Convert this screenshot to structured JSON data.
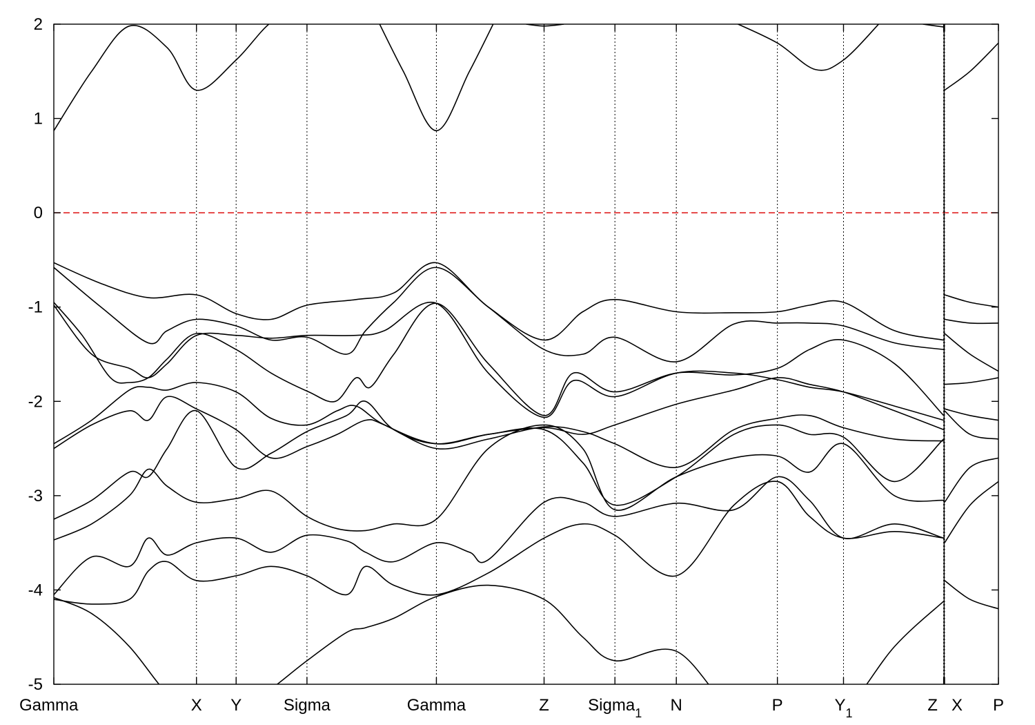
{
  "chart_data": {
    "type": "line",
    "title": "",
    "xlabel": "",
    "ylabel": "",
    "ylim": [
      -5,
      2
    ],
    "yticks": [
      2,
      1,
      0,
      -1,
      -2,
      -3,
      -4,
      -5
    ],
    "fermi_level": 0,
    "fermi_color": "#e02020",
    "line_color": "#000000",
    "grid": false,
    "xlim": [
      0,
      10
    ],
    "high_symmetry_points": [
      {
        "label": "Gamma",
        "sub": "",
        "x": 0.0
      },
      {
        "label": "X",
        "sub": "",
        "x": 1.51
      },
      {
        "label": "Y",
        "sub": "",
        "x": 1.93
      },
      {
        "label": "Sigma",
        "sub": "",
        "x": 2.68
      },
      {
        "label": "Gamma",
        "sub": "",
        "x": 4.05
      },
      {
        "label": "Z",
        "sub": "",
        "x": 5.19
      },
      {
        "label": "Sigma",
        "sub": "1",
        "x": 5.94
      },
      {
        "label": "N",
        "sub": "",
        "x": 6.59
      },
      {
        "label": "P",
        "sub": "",
        "x": 7.66
      },
      {
        "label": "Y",
        "sub": "1",
        "x": 8.36
      },
      {
        "label": "Z",
        "sub": "",
        "x": 9.42
      },
      {
        "label": "X",
        "sub": "",
        "x": 9.43
      },
      {
        "label": "P",
        "sub": "",
        "x": 10.0
      }
    ],
    "series": [
      {
        "x": [
          0,
          0.4,
          0.8,
          1.2,
          1.51,
          1.93,
          2.3,
          2.68
        ],
        "y": [
          0.87,
          1.5,
          1.98,
          1.75,
          1.3,
          1.62,
          2.02,
          2.2
        ]
      },
      {
        "x": [
          3.4,
          3.7,
          4.05,
          4.4,
          4.7
        ],
        "y": [
          2.1,
          1.5,
          0.87,
          1.5,
          2.1
        ]
      },
      {
        "x": [
          7.2,
          7.66,
          8.06,
          8.36,
          8.75
        ],
        "y": [
          2.02,
          1.8,
          1.52,
          1.62,
          2.02
        ]
      },
      {
        "x": [
          5.0,
          5.19,
          5.4
        ],
        "y": [
          2.0,
          1.98,
          2.0
        ]
      },
      {
        "x": [
          9.2,
          9.42
        ],
        "y": [
          2.0,
          1.97
        ]
      },
      {
        "x": [
          9.43,
          9.7,
          10.0
        ],
        "y": [
          1.3,
          1.5,
          1.8
        ]
      },
      {
        "x": [
          0,
          0.5,
          1.0,
          1.51,
          1.93,
          2.3,
          2.68,
          3.2,
          3.6,
          4.05,
          4.6,
          5.19,
          5.6,
          5.94,
          6.59,
          7.2,
          7.66,
          8.0,
          8.36,
          8.9,
          9.42
        ],
        "y": [
          -0.53,
          -0.75,
          -0.9,
          -0.87,
          -1.07,
          -1.13,
          -0.98,
          -0.92,
          -0.85,
          -0.53,
          -1.0,
          -1.35,
          -1.05,
          -0.92,
          -1.05,
          -1.06,
          -1.05,
          -0.98,
          -0.95,
          -1.25,
          -1.35
        ]
      },
      {
        "x": [
          0,
          0.5,
          1.0,
          1.2,
          1.51,
          1.93,
          2.3,
          2.68,
          3.1,
          3.3,
          3.6,
          4.05,
          4.6,
          5.19,
          5.6,
          5.94,
          6.59,
          7.2,
          7.66,
          8.0,
          8.36,
          8.9,
          9.42
        ],
        "y": [
          -0.58,
          -1.0,
          -1.38,
          -1.25,
          -1.13,
          -1.2,
          -1.35,
          -1.32,
          -1.5,
          -1.25,
          -0.95,
          -0.58,
          -1.0,
          -1.45,
          -1.5,
          -1.32,
          -1.58,
          -1.18,
          -1.17,
          -1.17,
          -1.2,
          -1.38,
          -1.45
        ]
      },
      {
        "x": [
          0,
          0.3,
          0.6,
          0.8,
          1.0,
          1.2,
          1.51,
          1.93,
          2.3,
          2.7,
          2.98,
          3.2,
          3.35,
          3.6,
          4.05,
          4.6,
          5.19,
          5.5,
          5.94,
          6.59,
          7.2,
          7.66,
          8.0,
          8.36,
          8.9,
          9.42
        ],
        "y": [
          -0.95,
          -1.3,
          -1.75,
          -1.8,
          -1.75,
          -1.55,
          -1.28,
          -1.45,
          -1.7,
          -1.9,
          -2.0,
          -1.75,
          -1.85,
          -1.5,
          -0.96,
          -1.6,
          -2.15,
          -1.7,
          -1.9,
          -1.7,
          -1.72,
          -1.65,
          -1.45,
          -1.35,
          -1.6,
          -2.15
        ]
      },
      {
        "x": [
          0,
          0.4,
          0.8,
          1.0,
          1.2,
          1.51,
          1.93,
          2.3,
          2.68,
          3.2,
          3.5,
          4.05,
          4.6,
          5.19,
          5.5,
          5.94,
          6.59,
          7.2,
          7.66,
          8.0,
          8.36,
          8.9,
          9.42
        ],
        "y": [
          -0.98,
          -1.5,
          -1.65,
          -1.75,
          -1.6,
          -1.3,
          -1.3,
          -1.33,
          -1.3,
          -1.3,
          -1.25,
          -0.96,
          -1.7,
          -2.17,
          -1.78,
          -1.95,
          -1.7,
          -1.7,
          -1.77,
          -1.85,
          -1.9,
          -2.05,
          -2.2
        ]
      },
      {
        "x": [
          0,
          0.4,
          0.8,
          1.0,
          1.2,
          1.51,
          1.93,
          2.3,
          2.68,
          3.0,
          3.2,
          3.5,
          4.05,
          4.6,
          5.19,
          5.6,
          5.94,
          6.59,
          7.2,
          7.66,
          8.0,
          8.36,
          8.9,
          9.42
        ],
        "y": [
          -2.45,
          -2.2,
          -1.88,
          -1.85,
          -1.88,
          -1.8,
          -1.9,
          -2.18,
          -2.25,
          -2.1,
          -2.05,
          -2.25,
          -2.45,
          -2.35,
          -2.28,
          -2.35,
          -2.25,
          -2.03,
          -1.88,
          -1.75,
          -1.82,
          -1.9,
          -2.1,
          -2.3
        ]
      },
      {
        "x": [
          0,
          0.4,
          0.8,
          1.0,
          1.2,
          1.51,
          1.93,
          2.3,
          2.68,
          3.0,
          3.3,
          3.5,
          4.05,
          4.6,
          5.19,
          5.6,
          5.94,
          6.59,
          7.2,
          7.66,
          8.0,
          8.36,
          8.9,
          9.42
        ],
        "y": [
          -2.5,
          -2.25,
          -2.1,
          -2.2,
          -1.95,
          -2.08,
          -2.3,
          -2.6,
          -2.48,
          -2.35,
          -2.2,
          -2.25,
          -2.5,
          -2.4,
          -2.27,
          -2.32,
          -2.45,
          -2.7,
          -2.3,
          -2.18,
          -2.15,
          -2.28,
          -2.4,
          -2.42
        ]
      },
      {
        "x": [
          0,
          0.4,
          0.8,
          1.0,
          1.2,
          1.51,
          1.93,
          2.3,
          2.68,
          3.1,
          3.3,
          3.6,
          4.05,
          4.6,
          5.19,
          5.6,
          5.94,
          6.59,
          7.2,
          7.66,
          8.0,
          8.36,
          8.9,
          9.42
        ],
        "y": [
          -3.25,
          -3.05,
          -2.75,
          -2.8,
          -2.5,
          -2.1,
          -2.7,
          -2.55,
          -2.32,
          -2.15,
          -2.0,
          -2.3,
          -2.45,
          -2.35,
          -2.3,
          -2.65,
          -3.1,
          -2.8,
          -2.35,
          -2.25,
          -2.35,
          -2.38,
          -2.85,
          -2.4
        ]
      },
      {
        "x": [
          0,
          0.4,
          0.8,
          1.0,
          1.2,
          1.51,
          1.93,
          2.3,
          2.68,
          3.0,
          3.3,
          3.6,
          4.05,
          4.6,
          5.19,
          5.6,
          5.94,
          6.59,
          7.2,
          7.66,
          8.0,
          8.36,
          8.9,
          9.42
        ],
        "y": [
          -3.47,
          -3.3,
          -3.0,
          -2.72,
          -2.9,
          -3.07,
          -3.03,
          -2.95,
          -3.22,
          -3.35,
          -3.37,
          -3.3,
          -3.25,
          -2.5,
          -2.25,
          -2.5,
          -3.15,
          -2.8,
          -2.6,
          -2.58,
          -2.75,
          -2.45,
          -3.0,
          -3.05
        ]
      },
      {
        "x": [
          0,
          0.4,
          0.8,
          1.0,
          1.2,
          1.51,
          1.93,
          2.3,
          2.68,
          3.1,
          3.3,
          3.6,
          4.05,
          4.4,
          4.6,
          5.19,
          5.6,
          5.94,
          6.59,
          7.2,
          7.66,
          8.0,
          8.36,
          8.9,
          9.42
        ],
        "y": [
          -4.05,
          -3.65,
          -3.75,
          -3.45,
          -3.63,
          -3.5,
          -3.45,
          -3.6,
          -3.42,
          -3.48,
          -3.6,
          -3.7,
          -3.5,
          -3.6,
          -3.68,
          -3.07,
          -3.07,
          -3.22,
          -3.08,
          -3.15,
          -2.8,
          -3.05,
          -3.45,
          -3.3,
          -3.45
        ]
      },
      {
        "x": [
          0,
          0.4,
          0.8,
          1.0,
          1.2,
          1.51,
          1.93,
          2.3,
          2.68,
          3.1,
          3.3,
          3.6,
          4.05,
          4.6,
          5.19,
          5.6,
          5.94,
          6.59,
          7.2,
          7.66,
          8.0,
          8.36,
          8.9,
          9.42
        ],
        "y": [
          -4.1,
          -4.15,
          -4.1,
          -3.8,
          -3.7,
          -3.9,
          -3.85,
          -3.75,
          -3.85,
          -4.05,
          -3.75,
          -3.95,
          -4.05,
          -3.82,
          -3.45,
          -3.3,
          -3.42,
          -3.85,
          -3.1,
          -2.85,
          -3.22,
          -3.45,
          -3.38,
          -3.45
        ]
      },
      {
        "x": [
          0,
          0.4,
          0.8,
          1.2,
          1.51,
          1.93,
          2.3,
          2.68,
          3.1,
          3.3,
          3.6,
          4.05,
          4.6,
          5.19,
          5.6,
          5.94,
          6.59,
          7.2,
          7.66,
          8.0,
          8.36,
          8.9,
          9.42
        ],
        "y": [
          -4.08,
          -4.25,
          -4.6,
          -5.1,
          -5.3,
          -5.3,
          -5.05,
          -4.75,
          -4.45,
          -4.4,
          -4.3,
          -4.07,
          -3.95,
          -4.1,
          -4.5,
          -4.75,
          -4.65,
          -5.3,
          -5.3,
          -5.3,
          -5.3,
          -4.6,
          -4.12
        ]
      },
      {
        "x": [
          9.43,
          9.7,
          10.0
        ],
        "y": [
          -0.87,
          -0.95,
          -1.0
        ]
      },
      {
        "x": [
          9.43,
          9.7,
          10.0
        ],
        "y": [
          -1.13,
          -1.17,
          -1.17
        ]
      },
      {
        "x": [
          9.43,
          9.7,
          10.0
        ],
        "y": [
          -1.28,
          -1.5,
          -1.68
        ]
      },
      {
        "x": [
          9.43,
          9.7,
          10.0
        ],
        "y": [
          -1.82,
          -1.8,
          -1.75
        ]
      },
      {
        "x": [
          9.43,
          9.7,
          10.0
        ],
        "y": [
          -2.08,
          -2.15,
          -2.2
        ]
      },
      {
        "x": [
          9.43,
          9.7,
          10.0
        ],
        "y": [
          -2.1,
          -2.35,
          -2.4
        ]
      },
      {
        "x": [
          9.43,
          9.7,
          10.0
        ],
        "y": [
          -3.07,
          -2.7,
          -2.6
        ]
      },
      {
        "x": [
          9.43,
          9.7,
          10.0
        ],
        "y": [
          -3.5,
          -3.1,
          -2.85
        ]
      },
      {
        "x": [
          9.43,
          9.7,
          10.0
        ],
        "y": [
          -3.9,
          -4.1,
          -4.2
        ]
      }
    ]
  }
}
